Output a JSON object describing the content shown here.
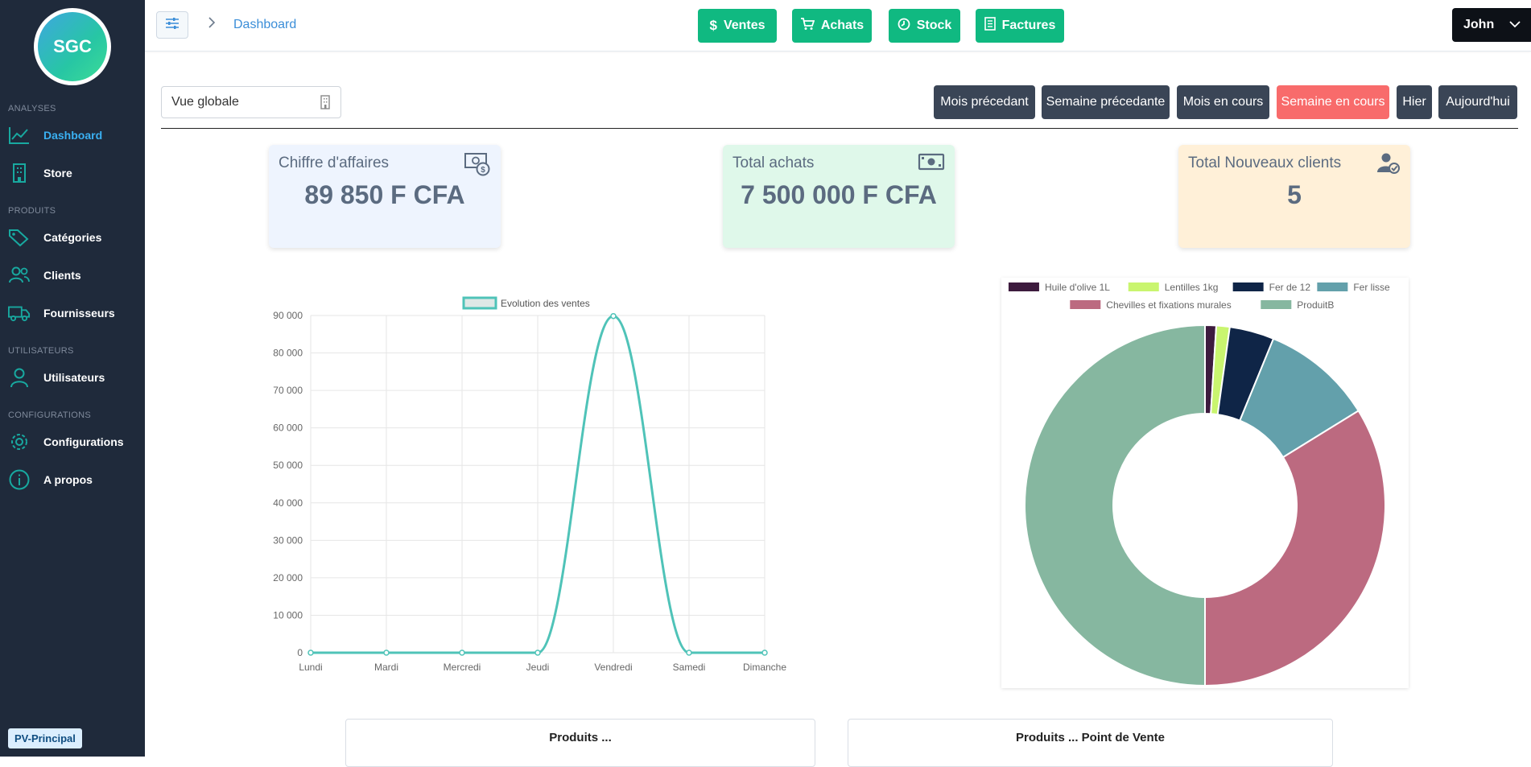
{
  "app": {
    "logo_text": "SGC",
    "pv_badge": "PV-Principal"
  },
  "sidebar": {
    "sections": [
      {
        "title": "ANALYSES"
      },
      {
        "title": "PRODUITS"
      },
      {
        "title": "UTILISATEURS"
      },
      {
        "title": "CONFIGURATIONS"
      }
    ],
    "items": [
      {
        "label": "Dashboard",
        "icon": "chart-line-icon"
      },
      {
        "label": "Store",
        "icon": "building-icon"
      },
      {
        "label": "Catégories",
        "icon": "tags-icon"
      },
      {
        "label": "Clients",
        "icon": "users-icon"
      },
      {
        "label": "Fournisseurs",
        "icon": "truck-icon"
      },
      {
        "label": "Utilisateurs",
        "icon": "user-icon"
      },
      {
        "label": "Configurations",
        "icon": "gear-icon"
      },
      {
        "label": "A propos",
        "icon": "info-icon"
      }
    ]
  },
  "topbar": {
    "breadcrumb": "Dashboard",
    "buttons": [
      {
        "label": "Ventes",
        "icon": "dollar-icon"
      },
      {
        "label": "Achats",
        "icon": "cart-icon"
      },
      {
        "label": "Stock",
        "icon": "clock-icon"
      },
      {
        "label": "Factures",
        "icon": "invoice-icon"
      }
    ],
    "user": "John"
  },
  "filters": {
    "view": "Vue globale",
    "periods": [
      "Mois précedant",
      "Semaine précedante",
      "Mois en cours",
      "Semaine en cours",
      "Hier",
      "Aujourd'hui"
    ],
    "active_period": "Semaine en cours"
  },
  "cards": [
    {
      "title": "Chiffre d'affaires",
      "value": "89 850 F CFA",
      "bg": "#eef4fe",
      "icon": "money-icon"
    },
    {
      "title": "Total achats",
      "value": "7 500 000 F CFA",
      "bg": "#dff8ea",
      "icon": "cash-icon"
    },
    {
      "title": "Total Nouveaux clients",
      "value": "5",
      "bg": "#fff0d8",
      "icon": "user-check-icon"
    }
  ],
  "chart_data": [
    {
      "type": "line",
      "series": [
        {
          "name": "Evolution des ventes",
          "values": [
            0,
            0,
            0,
            0,
            89850,
            0,
            0
          ]
        }
      ],
      "categories": [
        "Lundi",
        "Mardi",
        "Mercredi",
        "Jeudi",
        "Vendredi",
        "Samedi",
        "Dimanche"
      ],
      "y_ticks": [
        "0",
        "10 000",
        "20 000",
        "30 000",
        "40 000",
        "50 000",
        "60 000",
        "70 000",
        "80 000",
        "90 000"
      ],
      "ylim": [
        0,
        90000
      ],
      "color": "#4fc3b8",
      "legend": "top"
    },
    {
      "type": "pie",
      "labels": [
        "Huile d'olive 1L",
        "Lentilles 1kg",
        "Fer de 12",
        "Fer lisse",
        "Chevilles et fixations murales",
        "ProduitB"
      ],
      "values": [
        1,
        1.2,
        4,
        10,
        33.8,
        50
      ],
      "colors": [
        "#3d1b3e",
        "#c9f56f",
        "#0f2547",
        "#63a0ab",
        "#bc6a80",
        "#86b7a0"
      ],
      "legend": "top"
    }
  ],
  "bottom": {
    "card1": "Produits ...",
    "card2": "Produits ... Point de Vente"
  }
}
